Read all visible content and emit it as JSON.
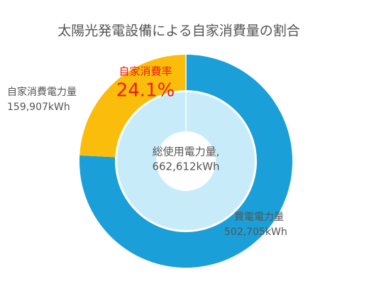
{
  "chart_data": {
    "type": "donut",
    "title": "太陽光発電設備による自家消費量の割合",
    "categories": [
      "自家消費電力量",
      "買電電力量"
    ],
    "values": [
      159907,
      502705
    ],
    "value_labels": [
      "159,907kWh",
      "502,705kWh"
    ],
    "colors": [
      "#fbbd0c",
      "#1a9fd8"
    ],
    "total": {
      "label": "総使用電力量,",
      "value": 662612,
      "value_label": "662,612kWh",
      "color": "#c8ebfa"
    },
    "rate": {
      "label": "自家消費率",
      "value": 24.1,
      "value_label": "24.1%",
      "color": "#ee1c0f"
    }
  }
}
